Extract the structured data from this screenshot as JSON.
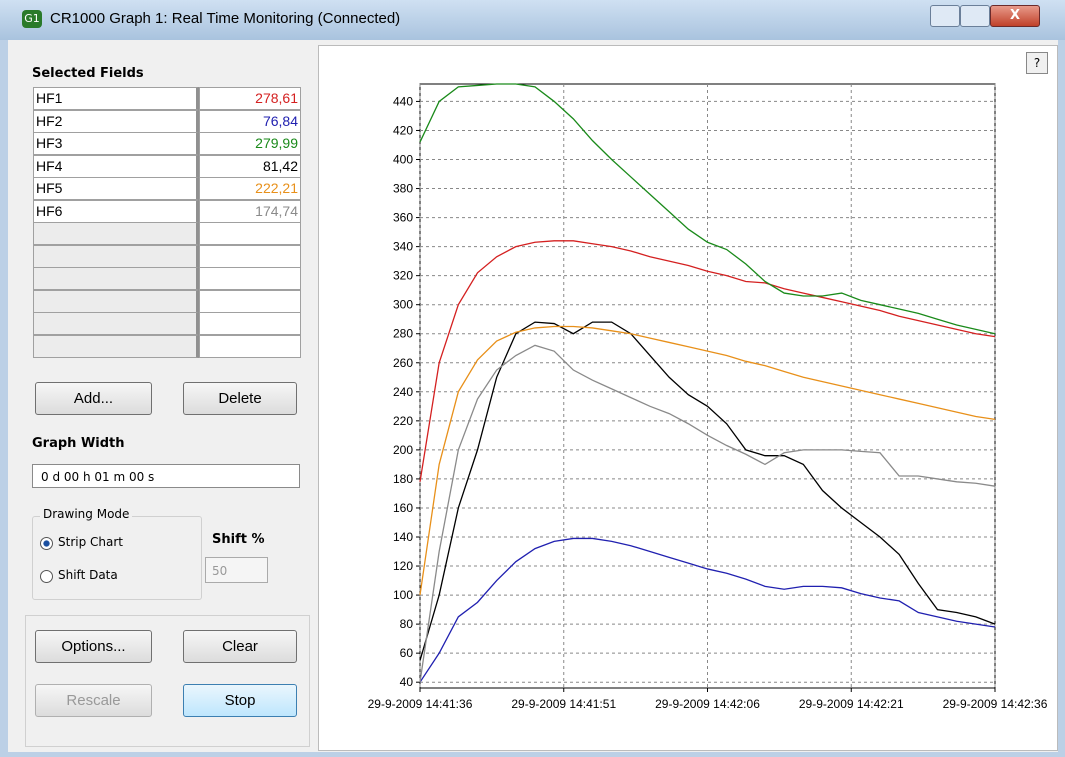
{
  "window": {
    "title": "CR1000 Graph 1: Real Time Monitoring (Connected)",
    "icon": "G1",
    "help": "?"
  },
  "fields": {
    "heading": "Selected Fields",
    "readings": [
      "278,61",
      "76,84",
      "279,99",
      "81,42",
      "222,21",
      "174,74"
    ]
  },
  "buttons": {
    "add": "Add...",
    "delete": "Delete",
    "options": "Options...",
    "clear": "Clear",
    "rescale": "Rescale",
    "stop": "Stop"
  },
  "graph_width": {
    "label": "Graph Width",
    "value": "0 d 00 h 01 m 00 s"
  },
  "drawing_mode": {
    "label": "Drawing Mode",
    "options": [
      "Strip Chart",
      "Shift Data"
    ],
    "shift_label": "Shift %",
    "shift_value": "50"
  },
  "chart_data": {
    "type": "line",
    "x": [
      "2009-09-29T14:41:36",
      "2009-09-29T14:41:38",
      "2009-09-29T14:41:40",
      "2009-09-29T14:41:42",
      "2009-09-29T14:41:44",
      "2009-09-29T14:41:46",
      "2009-09-29T14:41:48",
      "2009-09-29T14:41:50",
      "2009-09-29T14:41:52",
      "2009-09-29T14:41:54",
      "2009-09-29T14:41:56",
      "2009-09-29T14:41:58",
      "2009-09-29T14:42:00",
      "2009-09-29T14:42:02",
      "2009-09-29T14:42:04",
      "2009-09-29T14:42:06",
      "2009-09-29T14:42:08",
      "2009-09-29T14:42:10",
      "2009-09-29T14:42:12",
      "2009-09-29T14:42:14",
      "2009-09-29T14:42:16",
      "2009-09-29T14:42:18",
      "2009-09-29T14:42:20",
      "2009-09-29T14:42:22",
      "2009-09-29T14:42:24",
      "2009-09-29T14:42:26",
      "2009-09-29T14:42:28",
      "2009-09-29T14:42:30",
      "2009-09-29T14:42:32",
      "2009-09-29T14:42:34",
      "2009-09-29T14:42:36"
    ],
    "xlim": [
      "2009-09-29T14:41:36",
      "2009-09-29T14:42:36"
    ],
    "xticks": [
      {
        "value": "2009-09-29T14:41:36",
        "label": "29-9-2009 14:41:36"
      },
      {
        "value": "2009-09-29T14:41:51",
        "label": "29-9-2009 14:41:51"
      },
      {
        "value": "2009-09-29T14:42:06",
        "label": "29-9-2009 14:42:06"
      },
      {
        "value": "2009-09-29T14:42:21",
        "label": "29-9-2009 14:42:21"
      },
      {
        "value": "2009-09-29T14:42:36",
        "label": "29-9-2009 14:42:36"
      }
    ],
    "ylim": [
      36,
      452
    ],
    "yticks": [
      40,
      60,
      80,
      100,
      120,
      140,
      160,
      180,
      200,
      220,
      240,
      260,
      280,
      300,
      320,
      340,
      360,
      380,
      400,
      420,
      440
    ],
    "grid": true,
    "series": [
      {
        "name": "HF1",
        "color": "#d42020",
        "values": [
          178,
          260,
          300,
          322,
          333,
          340,
          343,
          344,
          344,
          342,
          340,
          337,
          333,
          330,
          327,
          323,
          320,
          316,
          315,
          311,
          308,
          305,
          302,
          299,
          296,
          292,
          289,
          286,
          283,
          280,
          278
        ]
      },
      {
        "name": "HF2",
        "color": "#2020b0",
        "values": [
          40,
          60,
          85,
          95,
          110,
          123,
          132,
          137,
          139,
          139,
          137,
          134,
          130,
          126,
          122,
          118,
          115,
          111,
          106,
          104,
          106,
          106,
          105,
          101,
          98,
          96,
          88,
          85,
          82,
          80,
          78
        ]
      },
      {
        "name": "HF3",
        "color": "#1a8a1a",
        "values": [
          412,
          440,
          450,
          451,
          452,
          452,
          450,
          440,
          428,
          413,
          400,
          388,
          376,
          364,
          352,
          343,
          338,
          328,
          316,
          308,
          306,
          306,
          308,
          303,
          300,
          297,
          294,
          290,
          286,
          283,
          280
        ]
      },
      {
        "name": "HF4",
        "color": "#000000",
        "values": [
          55,
          100,
          160,
          200,
          250,
          280,
          288,
          287,
          280,
          288,
          288,
          280,
          265,
          250,
          238,
          230,
          218,
          200,
          196,
          196,
          190,
          172,
          160,
          150,
          140,
          128,
          108,
          90,
          88,
          85,
          80
        ]
      },
      {
        "name": "HF5",
        "color": "#e8901a",
        "values": [
          100,
          190,
          240,
          262,
          275,
          281,
          284,
          285,
          285,
          284,
          282,
          280,
          277,
          274,
          271,
          268,
          265,
          261,
          258,
          254,
          250,
          247,
          244,
          241,
          238,
          235,
          232,
          229,
          226,
          223,
          221
        ]
      },
      {
        "name": "HF6",
        "color": "#8a8a8a",
        "values": [
          40,
          130,
          200,
          235,
          255,
          265,
          272,
          268,
          255,
          248,
          242,
          236,
          230,
          225,
          218,
          210,
          203,
          197,
          190,
          198,
          200,
          200,
          200,
          199,
          198,
          182,
          182,
          180,
          178,
          177,
          175
        ]
      }
    ]
  }
}
